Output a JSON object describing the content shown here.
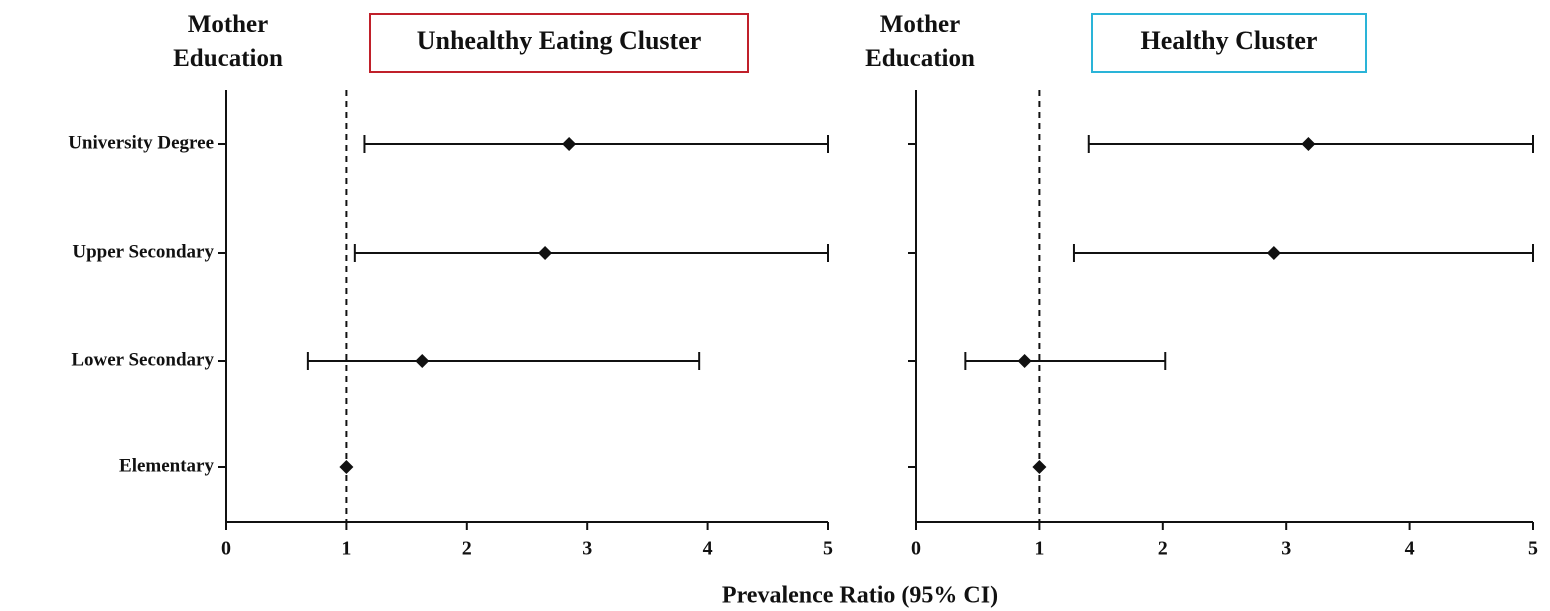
{
  "xlabel": "Prevalence Ratio (95% CI)",
  "chart_data": [
    {
      "type": "forest",
      "title": "Unhealthy Eating Cluster",
      "title_border": "#c0202a",
      "ylabel": "Mother Education",
      "categories": [
        "University Degree",
        "Upper Secondary",
        "Lower Secondary",
        "Elementary"
      ],
      "values": [
        2.85,
        2.65,
        1.63,
        1
      ],
      "lower": [
        1.15,
        1.07,
        0.68,
        null
      ],
      "upper": [
        5,
        5,
        3.93,
        null
      ],
      "color": "#111111",
      "xlim": [
        0,
        5
      ],
      "xticks": [
        0,
        1,
        2,
        3,
        4,
        5
      ],
      "refline": 1
    },
    {
      "type": "forest",
      "title": "Healthy Cluster",
      "title_border": "#2ab4d8",
      "ylabel": "Mother Education",
      "categories": [
        null,
        null,
        null,
        null
      ],
      "values": [
        3.18,
        2.9,
        0.88,
        1
      ],
      "lower": [
        1.4,
        1.28,
        0.4,
        null
      ],
      "upper": [
        5,
        5,
        2.02,
        null
      ],
      "color": "#111111",
      "xlim": [
        0,
        5
      ],
      "xticks": [
        0,
        1,
        2,
        3,
        4,
        5
      ],
      "refline": 1
    }
  ]
}
